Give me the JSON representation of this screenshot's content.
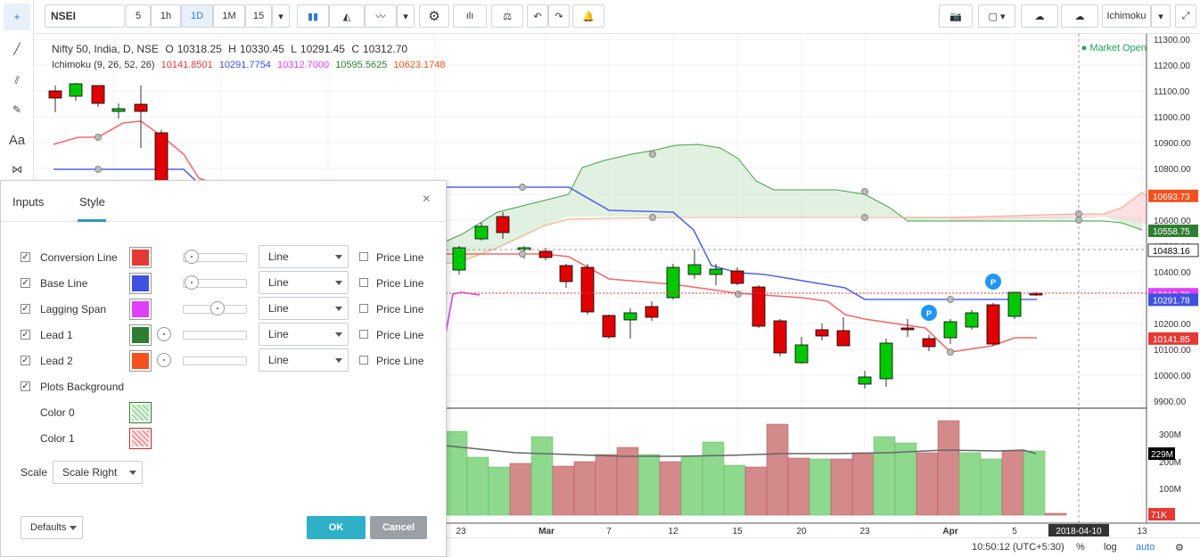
{
  "toolbar": {
    "symbol": "NSEI",
    "intervals": [
      "5",
      "1h",
      "1D",
      "1M",
      "15"
    ],
    "active_interval": "1D",
    "indicator_name": "Ichimoku"
  },
  "legend": {
    "title": "Nifty 50, India, D, NSE",
    "ohlc": [
      {
        "k": "O",
        "v": "10318.25"
      },
      {
        "k": "H",
        "v": "10330.45"
      },
      {
        "k": "L",
        "v": "10291.45"
      },
      {
        "k": "C",
        "v": "10312.70"
      }
    ],
    "ichimoku_title": "Ichimoku (9, 26, 52, 26)",
    "ichimoku_values": [
      {
        "v": "10141.8501",
        "color": "#e53935"
      },
      {
        "v": "10291.7754",
        "color": "#3f51e0"
      },
      {
        "v": "10312.7000",
        "color": "#e040fb"
      },
      {
        "v": "10595.5625",
        "color": "#2e7d32"
      },
      {
        "v": "10623.1748",
        "color": "#f4511e"
      }
    ],
    "market_status": "Market Open"
  },
  "chart_data": {
    "type": "candlestick",
    "price_axis": [
      "11300.00",
      "11200.00",
      "11100.00",
      "11000.00",
      "10900.00",
      "10800.00",
      "10700.00",
      "10600.00",
      "10500.00",
      "10400.00",
      "10300.00",
      "10200.00",
      "10100.00",
      "10000.00",
      "9900.00"
    ],
    "volume_axis": [
      "300M",
      "200M",
      "100M"
    ],
    "price_range": [
      9885,
      11300
    ],
    "price_tags": [
      {
        "v": "10693.73",
        "color": "#f4511e"
      },
      {
        "v": "10558.75",
        "color": "#2e7d32"
      },
      {
        "v": "10483.16",
        "color": "#ffffff"
      },
      {
        "v": "10312.70",
        "color": "#e53935"
      },
      {
        "v": "10312.70",
        "color": "#e040fb"
      },
      {
        "v": "10291.78",
        "color": "#3f51e0"
      },
      {
        "v": "10141.85",
        "color": "#e53935"
      }
    ],
    "volume_tags": [
      "229M",
      "71K"
    ],
    "date_labels": [
      "23",
      "Mar",
      "7",
      "12",
      "15",
      "20",
      "23",
      "Apr",
      "5",
      "2018-04-10",
      "13"
    ]
  },
  "dialog": {
    "tabs": [
      "Inputs",
      "Style"
    ],
    "active_tab": "Style",
    "rows": [
      {
        "label": "Conversion Line",
        "color": "#e53935",
        "style": "Line",
        "price_line": "Price Line"
      },
      {
        "label": "Base Line",
        "color": "#3f51e0",
        "style": "Line",
        "price_line": "Price Line"
      },
      {
        "label": "Lagging Span",
        "color": "#e040fb",
        "style": "Line",
        "price_line": "Price Line"
      },
      {
        "label": "Lead 1",
        "color": "#2e7d32",
        "style": "Line",
        "price_line": "Price Line"
      },
      {
        "label": "Lead 2",
        "color": "#f4511e",
        "style": "Line",
        "price_line": "Price Line"
      }
    ],
    "plots_background": "Plots Background",
    "color0_label": "Color 0",
    "color1_label": "Color 1",
    "scale_label": "Scale",
    "scale_value": "Scale Right",
    "defaults": "Defaults",
    "ok": "OK",
    "cancel": "Cancel"
  },
  "bottom": {
    "time": "10:50:12 (UTC+5:30)",
    "percent": "%",
    "log": "log",
    "auto": "auto"
  }
}
